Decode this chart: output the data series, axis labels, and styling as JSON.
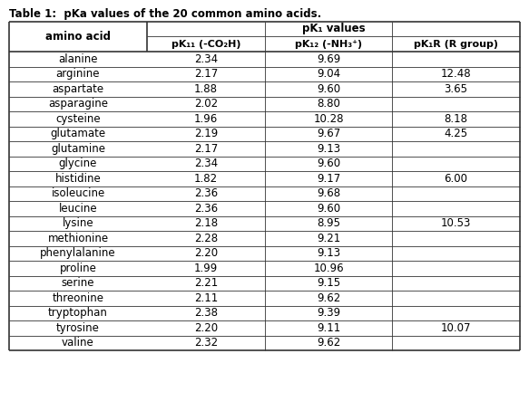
{
  "title": "Table 1:  pKa values of the 20 common amino acids.",
  "col1_header": "amino acid",
  "pka_values_header": "pK₁ values",
  "col2_header": "pK₁₁ (-CO₂H)",
  "col3_header": "pK₁₂ (-NH₃⁺)",
  "col4_header": "pK₁R (R group)",
  "amino_acids": [
    "alanine",
    "arginine",
    "aspartate",
    "asparagine",
    "cysteine",
    "glutamate",
    "glutamine",
    "glycine",
    "histidine",
    "isoleucine",
    "leucine",
    "lysine",
    "methionine",
    "phenylalanine",
    "proline",
    "serine",
    "threonine",
    "tryptophan",
    "tyrosine",
    "valine"
  ],
  "pka1": [
    "2.34",
    "2.17",
    "1.88",
    "2.02",
    "1.96",
    "2.19",
    "2.17",
    "2.34",
    "1.82",
    "2.36",
    "2.36",
    "2.18",
    "2.28",
    "2.20",
    "1.99",
    "2.21",
    "2.11",
    "2.38",
    "2.20",
    "2.32"
  ],
  "pka2": [
    "9.69",
    "9.04",
    "9.60",
    "8.80",
    "10.28",
    "9.67",
    "9.13",
    "9.60",
    "9.17",
    "9.68",
    "9.60",
    "8.95",
    "9.21",
    "9.13",
    "10.96",
    "9.15",
    "9.62",
    "9.39",
    "9.11",
    "9.62"
  ],
  "pkaR": [
    "",
    "12.48",
    "3.65",
    "",
    "8.18",
    "4.25",
    "",
    "",
    "6.00",
    "",
    "",
    "10.53",
    "",
    "",
    "",
    "",
    "",
    "",
    "10.07",
    ""
  ],
  "bg_color": "#ffffff",
  "border_color": "#333333",
  "text_color": "#000000",
  "title_fontsize": 8.5,
  "header_fontsize": 8.5,
  "cell_fontsize": 8.5
}
